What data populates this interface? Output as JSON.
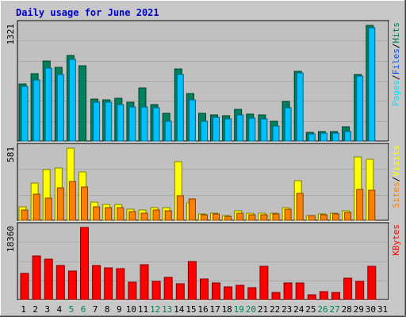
{
  "title": "Daily usage for June 2021",
  "colors": {
    "background": "#c8c8c8",
    "plot_bg": "#c0c0c0",
    "grid": "#a8a8a8",
    "title": "#0000cc",
    "hits": "#00805c",
    "files": "#00c0ff",
    "pages": "#00e0ff",
    "visits": "#ffff00",
    "sites": "#ff8000",
    "kbytes": "#ff0000",
    "weekend_label": "#00805c",
    "weekday_label": "#000000"
  },
  "x_labels": [
    "1",
    "2",
    "3",
    "4",
    "5",
    "6",
    "7",
    "8",
    "9",
    "10",
    "11",
    "12",
    "13",
    "14",
    "15",
    "16",
    "17",
    "18",
    "19",
    "20",
    "21",
    "22",
    "23",
    "24",
    "25",
    "26",
    "27",
    "28",
    "29",
    "30",
    "31"
  ],
  "weekend_days": [
    5,
    6,
    12,
    13,
    19,
    20,
    26,
    27
  ],
  "chart_data": [
    {
      "type": "bar",
      "panel": "top",
      "y_label_text": "1321",
      "y_max": 1321,
      "legend": [
        "Pages",
        "/",
        "Files",
        "/",
        "Hits"
      ],
      "categories": [
        "1",
        "2",
        "3",
        "4",
        "5",
        "6",
        "7",
        "8",
        "9",
        "10",
        "11",
        "12",
        "13",
        "14",
        "15",
        "16",
        "17",
        "18",
        "19",
        "20",
        "21",
        "22",
        "23",
        "24",
        "25",
        "26",
        "27",
        "28",
        "29",
        "30",
        "31"
      ],
      "series": [
        {
          "name": "Hits",
          "values": [
            650,
            770,
            910,
            840,
            980,
            860,
            480,
            470,
            490,
            440,
            610,
            420,
            320,
            820,
            540,
            320,
            300,
            290,
            360,
            310,
            300,
            230,
            450,
            800,
            100,
            110,
            110,
            160,
            760,
            1321,
            0
          ]
        },
        {
          "name": "Files",
          "values": [
            620,
            700,
            830,
            760,
            930,
            0,
            440,
            440,
            420,
            390,
            390,
            380,
            230,
            760,
            470,
            230,
            270,
            250,
            300,
            260,
            250,
            170,
            380,
            780,
            80,
            90,
            90,
            110,
            740,
            1290,
            0
          ]
        }
      ]
    },
    {
      "type": "bar",
      "panel": "middle",
      "y_label_text": "581",
      "y_max": 581,
      "legend": [
        "Sites",
        "/",
        "Visits"
      ],
      "categories": [
        "1",
        "2",
        "3",
        "4",
        "5",
        "6",
        "7",
        "8",
        "9",
        "10",
        "11",
        "12",
        "13",
        "14",
        "15",
        "16",
        "17",
        "18",
        "19",
        "20",
        "21",
        "22",
        "23",
        "24",
        "25",
        "26",
        "27",
        "28",
        "29",
        "30",
        "31"
      ],
      "series": [
        {
          "name": "Visits",
          "values": [
            110,
            300,
            410,
            420,
            581,
            390,
            150,
            130,
            130,
            90,
            80,
            100,
            100,
            470,
            140,
            50,
            55,
            40,
            75,
            55,
            55,
            55,
            100,
            320,
            40,
            50,
            55,
            75,
            510,
            490,
            0
          ]
        },
        {
          "name": "Sites",
          "values": [
            80,
            210,
            180,
            260,
            310,
            270,
            110,
            100,
            100,
            70,
            60,
            80,
            75,
            200,
            170,
            45,
            50,
            35,
            55,
            45,
            45,
            50,
            90,
            220,
            40,
            45,
            50,
            65,
            250,
            240,
            0
          ]
        }
      ]
    },
    {
      "type": "bar",
      "panel": "bottom",
      "y_label_text": "18360",
      "y_max": 18360,
      "legend": [
        "KBytes"
      ],
      "categories": [
        "1",
        "2",
        "3",
        "4",
        "5",
        "6",
        "7",
        "8",
        "9",
        "10",
        "11",
        "12",
        "13",
        "14",
        "15",
        "16",
        "17",
        "18",
        "19",
        "20",
        "21",
        "22",
        "23",
        "24",
        "25",
        "26",
        "27",
        "28",
        "29",
        "30",
        "31"
      ],
      "series": [
        {
          "name": "KBytes",
          "values": [
            6700,
            11100,
            10300,
            8600,
            7300,
            18360,
            8600,
            8000,
            7800,
            4500,
            8800,
            4700,
            5600,
            4000,
            9600,
            5200,
            4300,
            3300,
            3700,
            3100,
            8400,
            1800,
            4200,
            4200,
            1200,
            2000,
            1800,
            5400,
            4700,
            8500,
            0
          ]
        }
      ]
    }
  ]
}
